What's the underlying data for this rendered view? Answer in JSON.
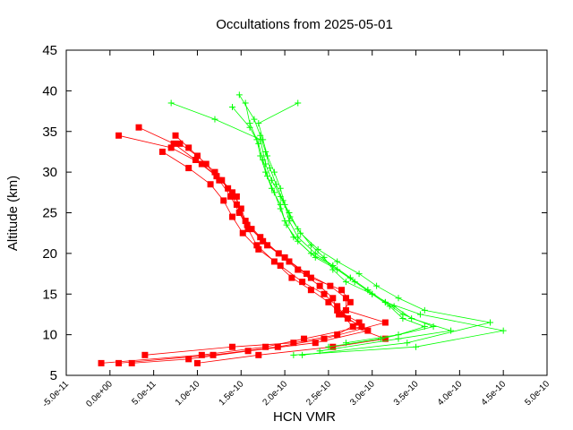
{
  "chart_data": {
    "type": "line",
    "title": "Occultations from 2025-05-01",
    "xlabel": "HCN VMR",
    "ylabel": "Altitude (km)",
    "xlim": [
      -5e-11,
      5e-10
    ],
    "ylim": [
      5,
      45
    ],
    "grid": false,
    "legend": "none",
    "x_ticks": [
      {
        "value": -5e-11,
        "label": "-5.0e-11"
      },
      {
        "value": 0,
        "label": "0.0e+00"
      },
      {
        "value": 5e-11,
        "label": "5.0e-11"
      },
      {
        "value": 1e-10,
        "label": "1.0e-10"
      },
      {
        "value": 1.5e-10,
        "label": "1.5e-10"
      },
      {
        "value": 2e-10,
        "label": "2.0e-10"
      },
      {
        "value": 2.5e-10,
        "label": "2.5e-10"
      },
      {
        "value": 3e-10,
        "label": "3.0e-10"
      },
      {
        "value": 3.5e-10,
        "label": "3.5e-10"
      },
      {
        "value": 4e-10,
        "label": "4.0e-10"
      },
      {
        "value": 4.5e-10,
        "label": "4.5e-10"
      },
      {
        "value": 5e-10,
        "label": "5.0e-10"
      }
    ],
    "y_ticks": [
      {
        "value": 5,
        "label": "5"
      },
      {
        "value": 10,
        "label": "10"
      },
      {
        "value": 15,
        "label": "15"
      },
      {
        "value": 20,
        "label": "20"
      },
      {
        "value": 25,
        "label": "25"
      },
      {
        "value": 30,
        "label": "30"
      },
      {
        "value": 35,
        "label": "35"
      },
      {
        "value": 40,
        "label": "40"
      },
      {
        "value": 45,
        "label": "45"
      }
    ],
    "series": [
      {
        "color": "#ff0000",
        "marker": "square",
        "x": [
          -1e-11,
          1.05e-10,
          1.78e-10,
          2.22e-10,
          2.88e-10,
          2.62e-10,
          2.75e-10,
          2.65e-10,
          2.3e-10,
          2.05e-10,
          1.8e-10,
          1.62e-10,
          1.48e-10,
          1.45e-10,
          1.28e-10,
          1.05e-10,
          7e-11,
          1e-11
        ],
        "y": [
          6.5,
          7.5,
          8.5,
          9.5,
          11.0,
          12.5,
          14.0,
          15.5,
          17.0,
          19.0,
          21.0,
          23.0,
          25.0,
          27.0,
          29.0,
          31.0,
          33.0,
          34.5
        ]
      },
      {
        "color": "#ff0000",
        "marker": "square",
        "x": [
          1e-11,
          1.18e-10,
          1.92e-10,
          2.45e-10,
          3.15e-10,
          2.7e-10,
          2.7e-10,
          2.52e-10,
          2.25e-10,
          2e-10,
          1.75e-10,
          1.57e-10,
          1.5e-10,
          1.4e-10,
          1.22e-10,
          9.8e-11,
          7.3e-11,
          3.3e-11
        ],
        "y": [
          6.5,
          7.5,
          8.5,
          9.5,
          11.5,
          13.0,
          14.5,
          16.0,
          17.5,
          19.5,
          21.5,
          23.5,
          25.5,
          27.5,
          29.5,
          31.5,
          33.5,
          35.5
        ]
      },
      {
        "color": "#ff0000",
        "marker": "square",
        "x": [
          2.5e-11,
          9e-11,
          1.58e-10,
          2.35e-10,
          2.95e-10,
          2.72e-10,
          2.6e-10,
          2.45e-10,
          2.2e-10,
          1.95e-10,
          1.7e-10,
          1.52e-10,
          1.4e-10,
          1.3e-10,
          1.15e-10,
          9e-11,
          6e-11
        ],
        "y": [
          6.5,
          7.0,
          8.0,
          9.0,
          10.5,
          12.0,
          13.5,
          15.0,
          16.5,
          18.5,
          20.5,
          22.5,
          24.5,
          26.5,
          28.5,
          30.5,
          32.5
        ]
      },
      {
        "color": "#ff0000",
        "marker": "square",
        "x": [
          1e-10,
          1.7e-10,
          2.55e-10,
          3.15e-10,
          2.78e-10,
          2.65e-10,
          2.5e-10,
          2.3e-10,
          2.08e-10,
          1.88e-10,
          1.68e-10,
          1.58e-10,
          1.48e-10,
          1.38e-10,
          1.25e-10,
          1.1e-10,
          9e-11,
          7.5e-11
        ],
        "y": [
          6.5,
          7.5,
          8.5,
          9.5,
          11.0,
          12.5,
          14.0,
          15.5,
          17.0,
          19.0,
          21.0,
          23.0,
          25.0,
          27.0,
          29.0,
          31.0,
          33.0,
          34.5
        ]
      },
      {
        "color": "#ff0000",
        "marker": "square",
        "x": [
          4e-11,
          1.4e-10,
          2.1e-10,
          2.6e-10,
          2.85e-10,
          2.6e-10,
          2.55e-10,
          2.4e-10,
          2.15e-10,
          1.93e-10,
          1.72e-10,
          1.55e-10,
          1.45e-10,
          1.35e-10,
          1.2e-10,
          1e-10,
          8e-11
        ],
        "y": [
          7.5,
          8.5,
          9.0,
          10.0,
          11.5,
          13.0,
          14.5,
          16.0,
          18.0,
          20.0,
          22.0,
          24.0,
          26.0,
          28.0,
          30.0,
          32.0,
          33.5
        ]
      },
      {
        "color": "#00ff00",
        "marker": "plus",
        "x": [
          2.1e-10,
          3.5e-10,
          4.5e-10,
          3.55e-10,
          3.15e-10,
          2.95e-10,
          2.75e-10,
          2.55e-10,
          2.3e-10,
          2.1e-10,
          2e-10,
          1.95e-10,
          1.85e-10,
          1.78e-10,
          1.72e-10,
          1.68e-10,
          1.6e-10,
          1.55e-10
        ],
        "y": [
          7.5,
          8.5,
          10.5,
          12.5,
          14.0,
          15.5,
          17.0,
          18.5,
          20.0,
          22.0,
          24.0,
          26.0,
          28.0,
          30.0,
          32.0,
          34.0,
          36.0,
          38.5
        ]
      },
      {
        "color": "#00ff00",
        "marker": "plus",
        "x": [
          2.2e-10,
          3.4e-10,
          4.35e-10,
          3.6e-10,
          3.3e-10,
          3.05e-10,
          2.85e-10,
          2.6e-10,
          2.38e-10,
          2.18e-10,
          2.06e-10,
          1.98e-10,
          1.9e-10,
          1.83e-10,
          1.78e-10,
          1.72e-10,
          1.65e-10,
          1.48e-10
        ],
        "y": [
          7.5,
          9.0,
          11.5,
          13.0,
          14.5,
          16.0,
          17.5,
          19.0,
          20.5,
          22.5,
          24.5,
          26.5,
          28.5,
          30.5,
          32.5,
          34.5,
          36.5,
          39.5
        ]
      },
      {
        "color": "#00ff00",
        "marker": "plus",
        "x": [
          2.4e-10,
          3.3e-10,
          3.9e-10,
          3.45e-10,
          3.25e-10,
          3e-10,
          2.8e-10,
          2.6e-10,
          2.35e-10,
          2.15e-10,
          2.02e-10,
          1.95e-10,
          1.88e-10,
          1.8e-10,
          1.75e-10,
          1.7e-10,
          1.6e-10,
          1.4e-10
        ],
        "y": [
          8.0,
          9.5,
          10.5,
          12.0,
          13.5,
          15.0,
          16.5,
          18.0,
          19.5,
          21.5,
          23.5,
          25.5,
          27.5,
          29.5,
          31.5,
          33.5,
          35.5,
          38.0
        ]
      },
      {
        "color": "#00ff00",
        "marker": "plus",
        "x": [
          2.5e-10,
          3.1e-10,
          3.7e-10,
          3.35e-10,
          3.15e-10,
          2.95e-10,
          2.75e-10,
          2.55e-10,
          2.35e-10,
          2.15e-10,
          2.05e-10,
          2e-10,
          1.95e-10,
          1.88e-10,
          1.8e-10,
          1.75e-10,
          1.7e-10,
          2.15e-10
        ],
        "y": [
          8.5,
          9.5,
          11.0,
          12.5,
          14.0,
          15.5,
          17.0,
          18.5,
          20.0,
          22.0,
          24.0,
          26.0,
          28.0,
          30.0,
          32.0,
          34.0,
          36.0,
          38.5
        ]
      },
      {
        "color": "#00ff00",
        "marker": "plus",
        "x": [
          2.7e-10,
          3.3e-10,
          3.6e-10,
          3.35e-10,
          3.2e-10,
          3e-10,
          2.7e-10,
          2.55e-10,
          2.45e-10,
          2.3e-10,
          2.15e-10,
          2.05e-10,
          1.95e-10,
          1.85e-10,
          1.78e-10,
          1.72e-10,
          1.2e-10,
          7e-11
        ],
        "y": [
          9.0,
          10.0,
          11.0,
          12.0,
          13.5,
          15.0,
          16.5,
          18.0,
          19.5,
          21.0,
          23.0,
          25.0,
          27.0,
          29.0,
          31.0,
          34.0,
          36.5,
          38.5
        ]
      }
    ]
  }
}
